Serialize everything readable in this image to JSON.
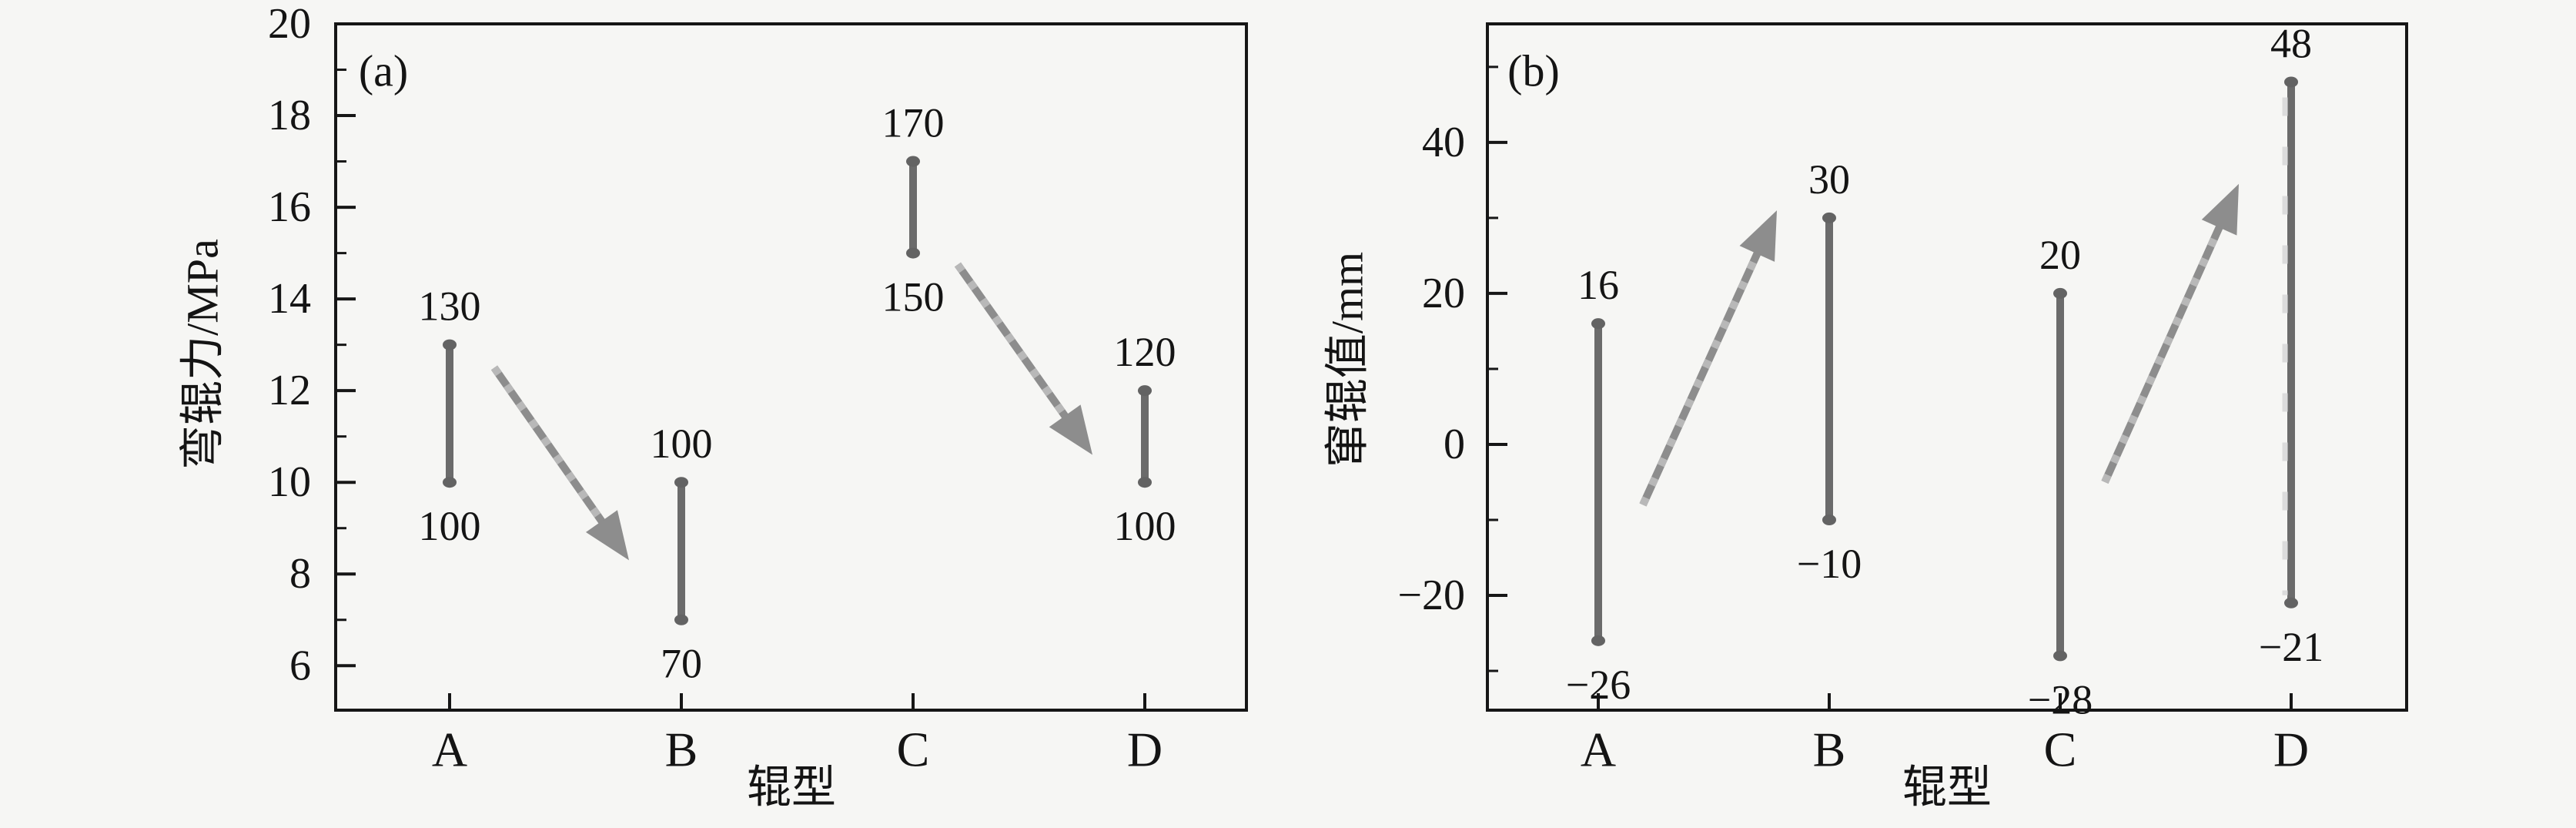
{
  "figure": {
    "background_color": "#f6f6f4",
    "bar_color": "#6b6b6b",
    "bar_cap_color": "#636363",
    "arrow_color": "#8d8d8d",
    "arrow_dash_color": "#b8b8b8",
    "axis_color": "#161616",
    "text_color": "#141414",
    "dash_overlay_color": "#dcdcdc"
  },
  "chart_data": [
    {
      "type": "range-bar",
      "panel_tag": "(a)",
      "title": "",
      "xlabel": "辊型",
      "ylabel": "弯辊力/MPa",
      "categories": [
        "A",
        "B",
        "C",
        "D"
      ],
      "ylim": [
        5.03,
        20
      ],
      "grid": false,
      "yticks_major": [
        {
          "value": 20,
          "label": "20"
        },
        {
          "value": 18,
          "label": "18"
        },
        {
          "value": 16,
          "label": "16"
        },
        {
          "value": 14,
          "label": "14"
        },
        {
          "value": 12,
          "label": "12"
        },
        {
          "value": 10,
          "label": "10"
        },
        {
          "value": 8,
          "label": "8"
        },
        {
          "value": 6,
          "label": "6"
        }
      ],
      "yticks_minor": [
        19,
        17,
        15,
        13,
        11,
        9,
        7
      ],
      "bars": [
        {
          "category": "A",
          "plot_low": 10,
          "plot_high": 13,
          "low_label": "100",
          "high_label": "130"
        },
        {
          "category": "B",
          "plot_low": 7,
          "plot_high": 10,
          "low_label": "70",
          "high_label": "100"
        },
        {
          "category": "C",
          "plot_low": 15,
          "plot_high": 17,
          "low_label": "150",
          "high_label": "170"
        },
        {
          "category": "D",
          "plot_low": 10,
          "plot_high": 12,
          "low_label": "100",
          "high_label": "120"
        }
      ],
      "arrows": [
        {
          "from_category": "A",
          "from_value": 12.5,
          "to_category": "B",
          "to_value": 8.3,
          "trend": "decrease"
        },
        {
          "from_category": "C",
          "from_value": 14.75,
          "to_category": "D",
          "to_value": 10.6,
          "trend": "decrease"
        }
      ],
      "dashed_overlay_bars": []
    },
    {
      "type": "range-bar",
      "panel_tag": "(b)",
      "title": "",
      "xlabel": "辊型",
      "ylabel": "窜辊值/mm",
      "categories": [
        "A",
        "B",
        "C",
        "D"
      ],
      "ylim": [
        -35.2,
        55.7
      ],
      "grid": false,
      "yticks_major": [
        {
          "value": 40,
          "label": "40"
        },
        {
          "value": 20,
          "label": "20"
        },
        {
          "value": 0,
          "label": "0"
        },
        {
          "value": -20,
          "label": "−20"
        }
      ],
      "yticks_minor": [
        50,
        30,
        10,
        -10,
        -30
      ],
      "bars": [
        {
          "category": "A",
          "plot_low": -26,
          "plot_high": 16,
          "low_label": "−26",
          "high_label": "16"
        },
        {
          "category": "B",
          "plot_low": -10,
          "plot_high": 30,
          "low_label": "−10",
          "high_label": "30"
        },
        {
          "category": "C",
          "plot_low": -28,
          "plot_high": 20,
          "low_label": "−28",
          "high_label": "20"
        },
        {
          "category": "D",
          "plot_low": -21,
          "plot_high": 48,
          "low_label": "−21",
          "high_label": "48"
        }
      ],
      "arrows": [
        {
          "from_category": "A",
          "from_value": -8,
          "to_category": "B",
          "to_value": 31,
          "trend": "increase"
        },
        {
          "from_category": "C",
          "from_value": -5,
          "to_category": "D",
          "to_value": 34.5,
          "trend": "increase"
        }
      ],
      "dashed_overlay_bars": [
        "D"
      ]
    }
  ]
}
